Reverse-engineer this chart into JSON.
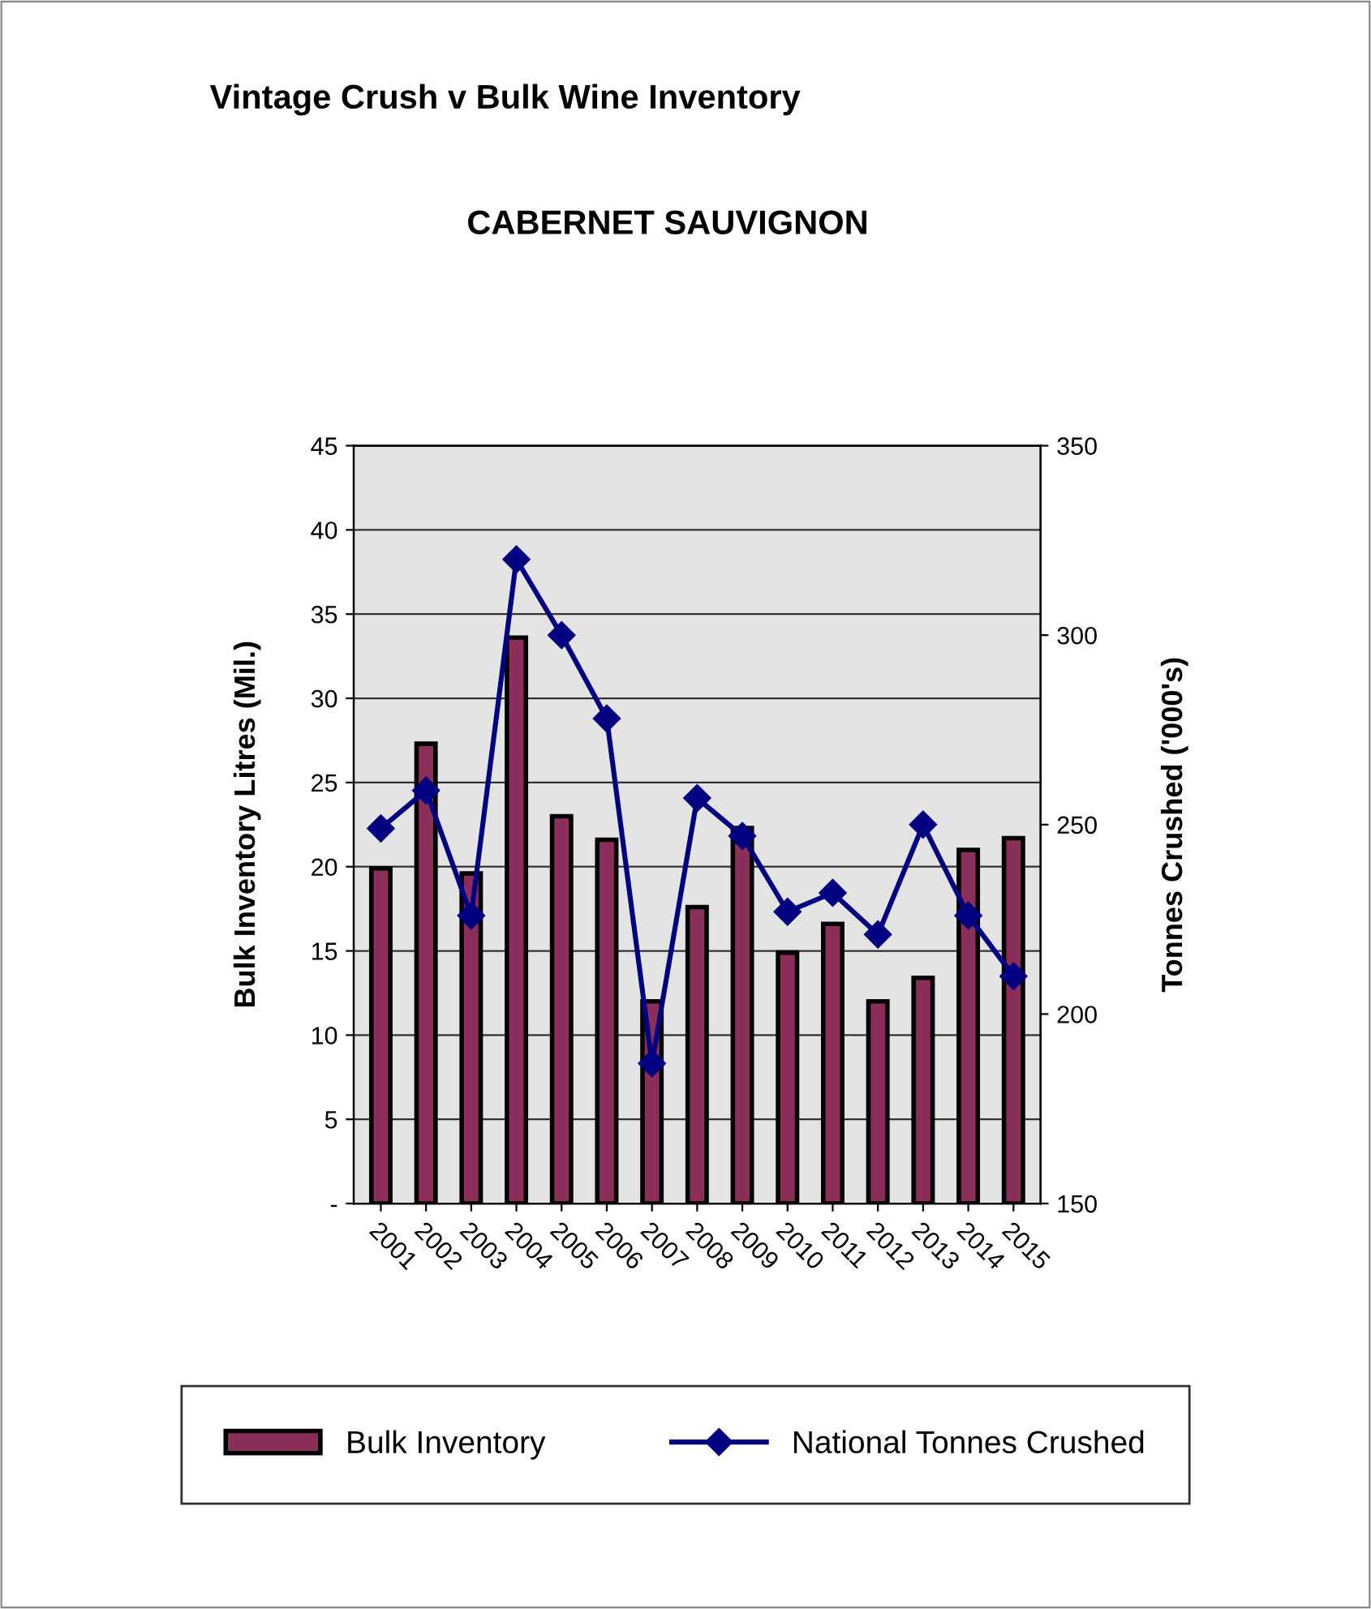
{
  "chart_data": {
    "type": "bar",
    "title": "Vintage Crush v Bulk Wine Inventory",
    "subtitle": "CABERNET SAUVIGNON",
    "ylabel": "Bulk Inventory Litres (Mil.)",
    "y2label": "Tonnes Crushed ('000's)",
    "categories": [
      "2001",
      "2002",
      "2003",
      "2004",
      "2005",
      "2006",
      "2007",
      "2008",
      "2009",
      "2010",
      "2011",
      "2012",
      "2013",
      "2014",
      "2015"
    ],
    "series": [
      {
        "name": "Bulk Inventory",
        "color": "#8b2f5a",
        "values": [
          19.9,
          27.3,
          19.6,
          33.6,
          23.0,
          21.6,
          12.0,
          17.6,
          22.3,
          14.9,
          16.6,
          12.0,
          13.4,
          21.0,
          21.7
        ]
      },
      {
        "name": "National Tonnes Crushed",
        "type": "line",
        "axis": "y2",
        "color": "#000080",
        "marker": "diamond",
        "values": [
          249,
          259,
          226,
          320,
          300,
          278,
          187,
          257,
          247,
          227,
          232,
          221,
          250,
          226,
          210
        ]
      }
    ],
    "ylim": [
      0,
      45
    ],
    "yticks": [
      {
        "value": 0,
        "label": "-"
      },
      5,
      10,
      15,
      20,
      25,
      30,
      35,
      40,
      45
    ],
    "y2lim": [
      150,
      350
    ],
    "y2ticks": [
      150,
      200,
      250,
      300,
      350
    ],
    "grid": "y",
    "legend": "bottom"
  }
}
